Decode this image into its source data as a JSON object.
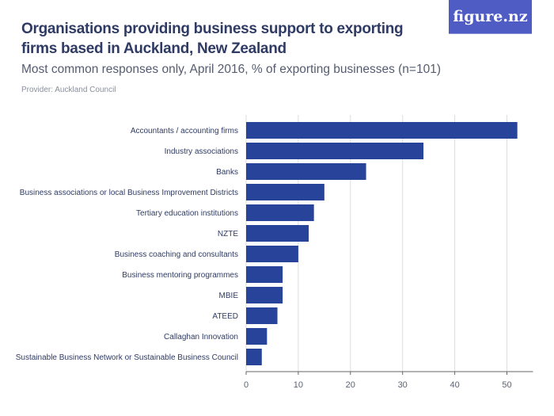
{
  "header": {
    "title": "Organisations providing business support to exporting firms based in Auckland, New Zealand",
    "subtitle": "Most common responses only, April 2016, % of exporting businesses (n=101)",
    "provider": "Provider: Auckland Council",
    "logo": "figure.nz"
  },
  "colors": {
    "bar": "#27439a",
    "logo_bg": "#4f5cc4",
    "grid": "#dddddd"
  },
  "chart_data": {
    "type": "bar",
    "orientation": "horizontal",
    "title": "Organisations providing business support to exporting firms based in Auckland, New Zealand",
    "subtitle": "Most common responses only, April 2016, % of exporting businesses (n=101)",
    "categories": [
      "Accountants / accounting firms",
      "Industry associations",
      "Banks",
      "Business associations or local Business Improvement Districts",
      "Tertiary education institutions",
      "NZTE",
      "Business coaching and consultants",
      "Business mentoring programmes",
      "MBIE",
      "ATEED",
      "Callaghan Innovation",
      "Sustainable Business Network or Sustainable Business Council"
    ],
    "values": [
      52,
      34,
      23,
      15,
      13,
      12,
      10,
      7,
      7,
      6,
      4,
      3
    ],
    "xlim": [
      0,
      55
    ],
    "xticks": [
      "0",
      "10",
      "20",
      "30",
      "40",
      "50"
    ],
    "grid": true,
    "legend": "none"
  }
}
